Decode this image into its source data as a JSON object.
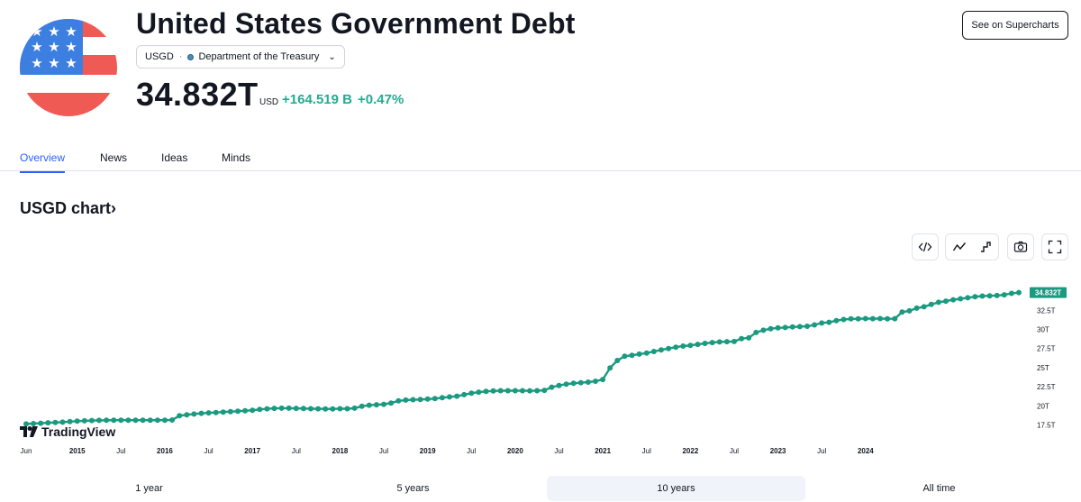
{
  "header": {
    "title": "United States Government Debt",
    "symbol": "USGD",
    "source": "Department of the Treasury",
    "price": "34.832",
    "price_unit": "T",
    "currency": "USD",
    "change_abs": "+164.519 B",
    "change_pct": "+0.47%",
    "supercharts_label": "See on Supercharts"
  },
  "tabs": [
    {
      "label": "Overview",
      "active": true
    },
    {
      "label": "News",
      "active": false
    },
    {
      "label": "Ideas",
      "active": false
    },
    {
      "label": "Minds",
      "active": false
    }
  ],
  "chart_section": {
    "heading": "USGD chart",
    "heading_arrow": "›",
    "toolbar": [
      {
        "icon": "embed-code-icon"
      },
      {
        "icon": "line-chart-icon",
        "active": true
      },
      {
        "icon": "step-chart-icon"
      },
      {
        "icon": "camera-icon"
      },
      {
        "icon": "fullscreen-icon"
      }
    ],
    "logo_text": "TradingView"
  },
  "ranges": [
    {
      "label": "1 year",
      "active": false
    },
    {
      "label": "5 years",
      "active": false
    },
    {
      "label": "10 years",
      "active": true
    },
    {
      "label": "All time",
      "active": false
    }
  ],
  "colors": {
    "accent": "#2962ff",
    "line": "#1a9a80",
    "positive": "#22ab94",
    "flag_red": "#f05a55",
    "flag_blue": "#3d7fe0"
  },
  "chart_data": {
    "type": "line",
    "title": "",
    "xlabel": "",
    "ylabel": "",
    "unit": "T",
    "ylim": [
      16.5,
      34.9
    ],
    "yticks": [
      17.5,
      20,
      22.5,
      25,
      27.5,
      30,
      32.5
    ],
    "ytick_labels": [
      "17.5T",
      "20T",
      "22.5T",
      "25T",
      "27.5T",
      "30T",
      "32.5T"
    ],
    "last_value_label": "34.832T",
    "x_start": "2014-06",
    "xticks": [
      {
        "label": "Jun",
        "x": "2014-06"
      },
      {
        "label": "2015",
        "x": "2015-01"
      },
      {
        "label": "Jul",
        "x": "2015-07"
      },
      {
        "label": "2016",
        "x": "2016-01"
      },
      {
        "label": "Jul",
        "x": "2016-07"
      },
      {
        "label": "2017",
        "x": "2017-01"
      },
      {
        "label": "Jul",
        "x": "2017-07"
      },
      {
        "label": "2018",
        "x": "2018-01"
      },
      {
        "label": "Jul",
        "x": "2018-07"
      },
      {
        "label": "2019",
        "x": "2019-01"
      },
      {
        "label": "Jul",
        "x": "2019-07"
      },
      {
        "label": "2020",
        "x": "2020-01"
      },
      {
        "label": "Jul",
        "x": "2020-07"
      },
      {
        "label": "2021",
        "x": "2021-01"
      },
      {
        "label": "Jul",
        "x": "2021-07"
      },
      {
        "label": "2022",
        "x": "2022-01"
      },
      {
        "label": "Jul",
        "x": "2022-07"
      },
      {
        "label": "2023",
        "x": "2023-01"
      },
      {
        "label": "Jul",
        "x": "2023-07"
      },
      {
        "label": "2024",
        "x": "2024-01"
      }
    ],
    "series": [
      {
        "values": [
          17.63,
          17.68,
          17.73,
          17.79,
          17.82,
          17.87,
          17.94,
          18.0,
          18.05,
          18.08,
          18.1,
          18.12,
          18.13,
          18.13,
          18.13,
          18.13,
          18.13,
          18.13,
          18.13,
          18.13,
          18.15,
          18.71,
          18.83,
          18.93,
          19.02,
          19.08,
          19.13,
          19.19,
          19.25,
          19.3,
          19.37,
          19.43,
          19.53,
          19.61,
          19.67,
          19.7,
          19.7,
          19.67,
          19.65,
          19.62,
          19.61,
          19.6,
          19.6,
          19.62,
          19.63,
          19.7,
          19.95,
          20.08,
          20.15,
          20.2,
          20.37,
          20.65,
          20.76,
          20.8,
          20.83,
          20.89,
          20.95,
          21.06,
          21.17,
          21.27,
          21.46,
          21.65,
          21.8,
          21.89,
          21.95,
          21.98,
          21.98,
          21.98,
          21.98,
          21.97,
          21.99,
          22.03,
          22.44,
          22.67,
          22.84,
          22.95,
          23.03,
          23.1,
          23.22,
          23.45,
          24.97,
          25.93,
          26.49,
          26.62,
          26.77,
          26.92,
          27.11,
          27.33,
          27.5,
          27.68,
          27.82,
          27.92,
          28.05,
          28.18,
          28.28,
          28.37,
          28.4,
          28.43,
          28.8,
          28.9,
          29.6,
          29.9,
          30.1,
          30.2,
          30.25,
          30.32,
          30.37,
          30.42,
          30.6,
          30.84,
          30.94,
          31.15,
          31.3,
          31.38,
          31.4,
          31.42,
          31.41,
          31.42,
          31.4,
          31.41,
          32.27,
          32.44,
          32.79,
          32.97,
          33.27,
          33.55,
          33.71,
          33.88,
          34.02,
          34.15,
          34.29,
          34.37,
          34.41,
          34.44,
          34.54,
          34.72,
          34.83
        ]
      }
    ]
  }
}
